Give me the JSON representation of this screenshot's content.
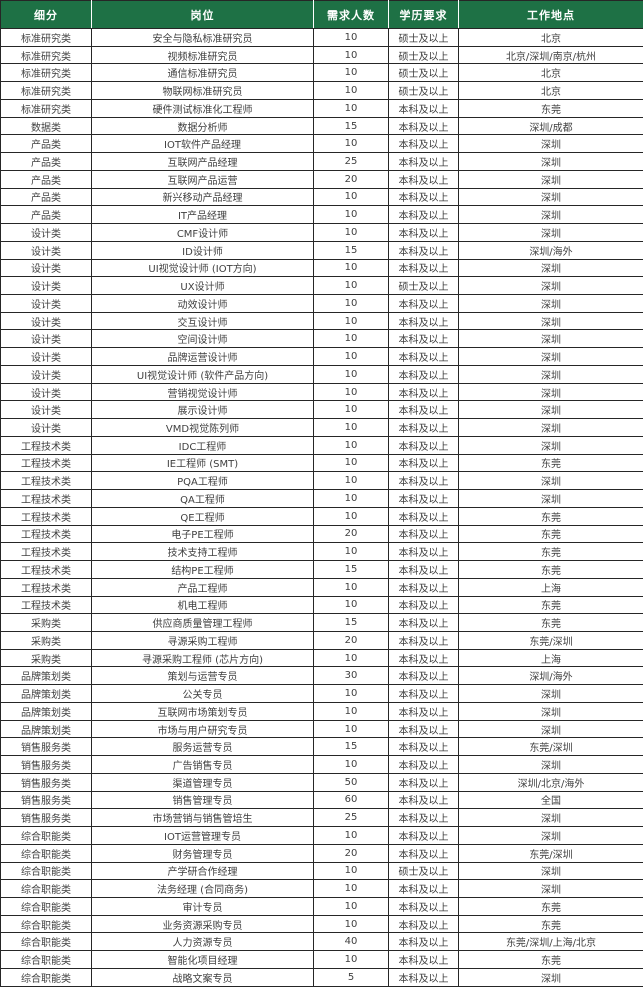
{
  "colors": {
    "header_bg": "#1E7145",
    "header_text": "#FFFFFF",
    "body_text": "#404040",
    "border": "#262626"
  },
  "table": {
    "columns": [
      "细分",
      "岗位",
      "需求人数",
      "学历要求",
      "工作地点"
    ],
    "rows": [
      [
        "标准研究类",
        "安全与隐私标准研究员",
        "10",
        "硕士及以上",
        "北京"
      ],
      [
        "标准研究类",
        "视频标准研究员",
        "10",
        "硕士及以上",
        "北京/深圳/南京/杭州"
      ],
      [
        "标准研究类",
        "通信标准研究员",
        "10",
        "硕士及以上",
        "北京"
      ],
      [
        "标准研究类",
        "物联网标准研究员",
        "10",
        "硕士及以上",
        "北京"
      ],
      [
        "标准研究类",
        "硬件测试标准化工程师",
        "10",
        "本科及以上",
        "东莞"
      ],
      [
        "数据类",
        "数据分析师",
        "15",
        "本科及以上",
        "深圳/成都"
      ],
      [
        "产品类",
        "IOT软件产品经理",
        "10",
        "本科及以上",
        "深圳"
      ],
      [
        "产品类",
        "互联网产品经理",
        "25",
        "本科及以上",
        "深圳"
      ],
      [
        "产品类",
        "互联网产品运营",
        "20",
        "本科及以上",
        "深圳"
      ],
      [
        "产品类",
        "新兴移动产品经理",
        "10",
        "本科及以上",
        "深圳"
      ],
      [
        "产品类",
        "IT产品经理",
        "10",
        "本科及以上",
        "深圳"
      ],
      [
        "设计类",
        "CMF设计师",
        "10",
        "本科及以上",
        "深圳"
      ],
      [
        "设计类",
        "ID设计师",
        "15",
        "本科及以上",
        "深圳/海外"
      ],
      [
        "设计类",
        "UI视觉设计师 (IOT方向)",
        "10",
        "本科及以上",
        "深圳"
      ],
      [
        "设计类",
        "UX设计师",
        "10",
        "硕士及以上",
        "深圳"
      ],
      [
        "设计类",
        "动效设计师",
        "10",
        "本科及以上",
        "深圳"
      ],
      [
        "设计类",
        "交互设计师",
        "10",
        "本科及以上",
        "深圳"
      ],
      [
        "设计类",
        "空间设计师",
        "10",
        "本科及以上",
        "深圳"
      ],
      [
        "设计类",
        "品牌运营设计师",
        "10",
        "本科及以上",
        "深圳"
      ],
      [
        "设计类",
        "UI视觉设计师 (软件产品方向)",
        "10",
        "本科及以上",
        "深圳"
      ],
      [
        "设计类",
        "营销视觉设计师",
        "10",
        "本科及以上",
        "深圳"
      ],
      [
        "设计类",
        "展示设计师",
        "10",
        "本科及以上",
        "深圳"
      ],
      [
        "设计类",
        "VMD视觉陈列师",
        "10",
        "本科及以上",
        "深圳"
      ],
      [
        "工程技术类",
        "IDC工程师",
        "10",
        "本科及以上",
        "深圳"
      ],
      [
        "工程技术类",
        "IE工程师 (SMT)",
        "10",
        "本科及以上",
        "东莞"
      ],
      [
        "工程技术类",
        "PQA工程师",
        "10",
        "本科及以上",
        "深圳"
      ],
      [
        "工程技术类",
        "QA工程师",
        "10",
        "本科及以上",
        "深圳"
      ],
      [
        "工程技术类",
        "QE工程师",
        "10",
        "本科及以上",
        "东莞"
      ],
      [
        "工程技术类",
        "电子PE工程师",
        "20",
        "本科及以上",
        "东莞"
      ],
      [
        "工程技术类",
        "技术支持工程师",
        "10",
        "本科及以上",
        "东莞"
      ],
      [
        "工程技术类",
        "结构PE工程师",
        "15",
        "本科及以上",
        "东莞"
      ],
      [
        "工程技术类",
        "产品工程师",
        "10",
        "本科及以上",
        "上海"
      ],
      [
        "工程技术类",
        "机电工程师",
        "10",
        "本科及以上",
        "东莞"
      ],
      [
        "采购类",
        "供应商质量管理工程师",
        "15",
        "本科及以上",
        "东莞"
      ],
      [
        "采购类",
        "寻源采购工程师",
        "20",
        "本科及以上",
        "东莞/深圳"
      ],
      [
        "采购类",
        "寻源采购工程师 (芯片方向)",
        "10",
        "本科及以上",
        "上海"
      ],
      [
        "品牌策划类",
        "策划与运营专员",
        "30",
        "本科及以上",
        "深圳/海外"
      ],
      [
        "品牌策划类",
        "公关专员",
        "10",
        "本科及以上",
        "深圳"
      ],
      [
        "品牌策划类",
        "互联网市场策划专员",
        "10",
        "本科及以上",
        "深圳"
      ],
      [
        "品牌策划类",
        "市场与用户研究专员",
        "10",
        "本科及以上",
        "深圳"
      ],
      [
        "销售服务类",
        "服务运营专员",
        "15",
        "本科及以上",
        "东莞/深圳"
      ],
      [
        "销售服务类",
        "广告销售专员",
        "10",
        "本科及以上",
        "深圳"
      ],
      [
        "销售服务类",
        "渠道管理专员",
        "50",
        "本科及以上",
        "深圳/北京/海外"
      ],
      [
        "销售服务类",
        "销售管理专员",
        "60",
        "本科及以上",
        "全国"
      ],
      [
        "销售服务类",
        "市场营销与销售管培生",
        "25",
        "本科及以上",
        "深圳"
      ],
      [
        "综合职能类",
        "IOT运营管理专员",
        "10",
        "本科及以上",
        "深圳"
      ],
      [
        "综合职能类",
        "财务管理专员",
        "20",
        "本科及以上",
        "东莞/深圳"
      ],
      [
        "综合职能类",
        "产学研合作经理",
        "10",
        "硕士及以上",
        "深圳"
      ],
      [
        "综合职能类",
        "法务经理 (合同商务)",
        "10",
        "本科及以上",
        "深圳"
      ],
      [
        "综合职能类",
        "审计专员",
        "10",
        "本科及以上",
        "东莞"
      ],
      [
        "综合职能类",
        "业务资源采购专员",
        "10",
        "本科及以上",
        "东莞"
      ],
      [
        "综合职能类",
        "人力资源专员",
        "40",
        "本科及以上",
        "东莞/深圳/上海/北京"
      ],
      [
        "综合职能类",
        "智能化项目经理",
        "10",
        "本科及以上",
        "东莞"
      ],
      [
        "综合职能类",
        "战略文案专员",
        "5",
        "本科及以上",
        "深圳"
      ]
    ]
  }
}
